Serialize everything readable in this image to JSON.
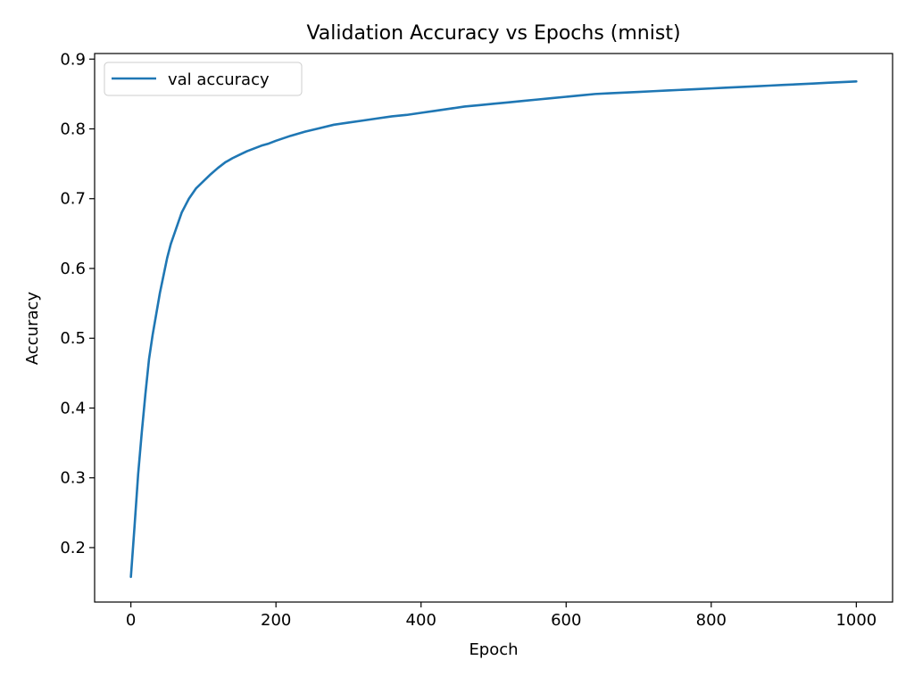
{
  "chart_data": {
    "type": "line",
    "title": "Validation Accuracy vs Epochs (mnist)",
    "xlabel": "Epoch",
    "ylabel": "Accuracy",
    "xlim": [
      -50,
      1050
    ],
    "ylim": [
      0.122,
      0.908
    ],
    "xticks": [
      0,
      200,
      400,
      600,
      800,
      1000
    ],
    "yticks": [
      0.2,
      0.3,
      0.4,
      0.5,
      0.6,
      0.7,
      0.8,
      0.9
    ],
    "xtick_labels": [
      "0",
      "200",
      "400",
      "600",
      "800",
      "1000"
    ],
    "ytick_labels": [
      "0.2",
      "0.3",
      "0.4",
      "0.5",
      "0.6",
      "0.7",
      "0.8",
      "0.9"
    ],
    "grid": false,
    "legend_position": "top-left",
    "series": [
      {
        "name": "val accuracy",
        "color": "#1f77b4",
        "x": [
          0,
          5,
          10,
          15,
          20,
          25,
          30,
          35,
          40,
          45,
          50,
          55,
          60,
          65,
          70,
          75,
          80,
          90,
          100,
          110,
          120,
          130,
          140,
          150,
          160,
          170,
          180,
          190,
          200,
          220,
          240,
          260,
          280,
          300,
          320,
          340,
          360,
          380,
          400,
          420,
          440,
          460,
          480,
          500,
          520,
          540,
          560,
          580,
          600,
          620,
          640,
          660,
          680,
          700,
          720,
          740,
          760,
          780,
          800,
          820,
          840,
          860,
          880,
          900,
          920,
          940,
          960,
          980,
          1000
        ],
        "values": [
          0.158,
          0.23,
          0.305,
          0.365,
          0.42,
          0.47,
          0.505,
          0.535,
          0.565,
          0.59,
          0.615,
          0.635,
          0.65,
          0.665,
          0.68,
          0.69,
          0.7,
          0.715,
          0.725,
          0.735,
          0.744,
          0.752,
          0.758,
          0.763,
          0.768,
          0.772,
          0.776,
          0.779,
          0.783,
          0.79,
          0.796,
          0.801,
          0.806,
          0.809,
          0.812,
          0.815,
          0.818,
          0.82,
          0.823,
          0.826,
          0.829,
          0.832,
          0.834,
          0.836,
          0.838,
          0.84,
          0.842,
          0.844,
          0.846,
          0.848,
          0.85,
          0.851,
          0.852,
          0.853,
          0.854,
          0.855,
          0.856,
          0.857,
          0.858,
          0.859,
          0.86,
          0.861,
          0.862,
          0.863,
          0.864,
          0.865,
          0.866,
          0.867,
          0.868
        ]
      }
    ]
  }
}
